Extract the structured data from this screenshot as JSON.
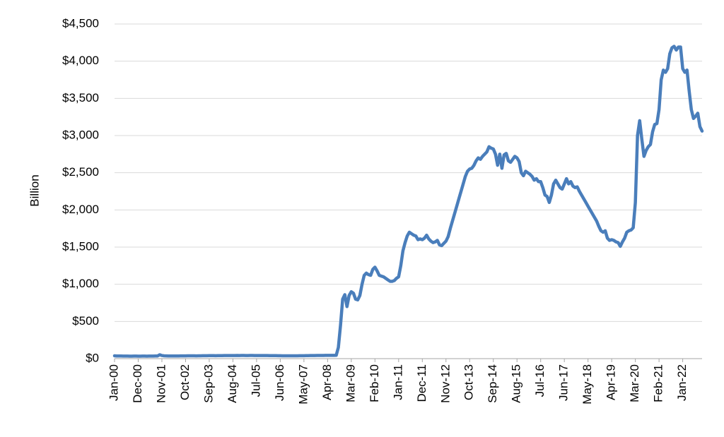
{
  "chart_data": {
    "type": "line",
    "y_label": "Billion",
    "color": "#4a7ebb",
    "grid": true,
    "ylim": [
      0,
      4500
    ],
    "yticks": [
      {
        "value": 0,
        "label": "$0"
      },
      {
        "value": 500,
        "label": "$500"
      },
      {
        "value": 1000,
        "label": "$1,000"
      },
      {
        "value": 1500,
        "label": "$1,500"
      },
      {
        "value": 2000,
        "label": "$2,000"
      },
      {
        "value": 2500,
        "label": "$2,500"
      },
      {
        "value": 3000,
        "label": "$3,000"
      },
      {
        "value": 3500,
        "label": "$3,500"
      },
      {
        "value": 4000,
        "label": "$4,000"
      },
      {
        "value": 4500,
        "label": "$4,500"
      }
    ],
    "categories": [
      "Jan-00",
      null,
      null,
      null,
      null,
      null,
      null,
      null,
      null,
      null,
      null,
      "Dec-00",
      null,
      null,
      null,
      null,
      null,
      null,
      null,
      null,
      null,
      null,
      "Nov-01",
      null,
      null,
      null,
      null,
      null,
      null,
      null,
      null,
      null,
      null,
      "Oct-02",
      null,
      null,
      null,
      null,
      null,
      null,
      null,
      null,
      null,
      null,
      "Sep-03",
      null,
      null,
      null,
      null,
      null,
      null,
      null,
      null,
      null,
      null,
      "Aug-04",
      null,
      null,
      null,
      null,
      null,
      null,
      null,
      null,
      null,
      null,
      "Jul-05",
      null,
      null,
      null,
      null,
      null,
      null,
      null,
      null,
      null,
      null,
      "Jun-06",
      null,
      null,
      null,
      null,
      null,
      null,
      null,
      null,
      null,
      null,
      "May-07",
      null,
      null,
      null,
      null,
      null,
      null,
      null,
      null,
      null,
      null,
      "Apr-08",
      null,
      null,
      null,
      null,
      null,
      null,
      null,
      null,
      null,
      null,
      "Mar-09",
      null,
      null,
      null,
      null,
      null,
      null,
      null,
      null,
      null,
      null,
      "Feb-10",
      null,
      null,
      null,
      null,
      null,
      null,
      null,
      null,
      null,
      null,
      "Jan-11",
      null,
      null,
      null,
      null,
      null,
      null,
      null,
      null,
      null,
      null,
      "Dec-11",
      null,
      null,
      null,
      null,
      null,
      null,
      null,
      null,
      null,
      null,
      "Nov-12",
      null,
      null,
      null,
      null,
      null,
      null,
      null,
      null,
      null,
      null,
      "Oct-13",
      null,
      null,
      null,
      null,
      null,
      null,
      null,
      null,
      null,
      null,
      "Sep-14",
      null,
      null,
      null,
      null,
      null,
      null,
      null,
      null,
      null,
      null,
      "Aug-15",
      null,
      null,
      null,
      null,
      null,
      null,
      null,
      null,
      null,
      null,
      "Jul-16",
      null,
      null,
      null,
      null,
      null,
      null,
      null,
      null,
      null,
      null,
      "Jun-17",
      null,
      null,
      null,
      null,
      null,
      null,
      null,
      null,
      null,
      null,
      "May-18",
      null,
      null,
      null,
      null,
      null,
      null,
      null,
      null,
      null,
      null,
      "Apr-19",
      null,
      null,
      null,
      null,
      null,
      null,
      null,
      null,
      null,
      null,
      "Mar-20",
      null,
      null,
      null,
      null,
      null,
      null,
      null,
      null,
      null,
      null,
      "Feb-21",
      null,
      null,
      null,
      null,
      null,
      null,
      null,
      null,
      null,
      null,
      "Jan-22",
      null,
      null,
      null,
      null,
      null,
      null,
      null,
      null,
      null
    ],
    "values": [
      38,
      36,
      35,
      35,
      34,
      34,
      34,
      33,
      33,
      34,
      34,
      33,
      33,
      34,
      34,
      33,
      34,
      34,
      34,
      35,
      36,
      52,
      42,
      38,
      37,
      36,
      36,
      36,
      35,
      36,
      36,
      37,
      37,
      37,
      38,
      38,
      38,
      38,
      37,
      38,
      38,
      39,
      39,
      39,
      40,
      40,
      40,
      39,
      40,
      40,
      40,
      41,
      41,
      42,
      42,
      41,
      42,
      43,
      42,
      43,
      43,
      42,
      42,
      43,
      43,
      42,
      42,
      42,
      42,
      41,
      41,
      41,
      40,
      40,
      40,
      40,
      39,
      39,
      38,
      38,
      38,
      38,
      38,
      38,
      38,
      38,
      39,
      39,
      39,
      40,
      40,
      41,
      42,
      42,
      43,
      43,
      43,
      43,
      44,
      44,
      44,
      44,
      44,
      45,
      150,
      450,
      800,
      860,
      700,
      850,
      900,
      880,
      800,
      790,
      850,
      1000,
      1120,
      1150,
      1130,
      1120,
      1200,
      1230,
      1180,
      1120,
      1110,
      1100,
      1080,
      1060,
      1040,
      1040,
      1050,
      1080,
      1100,
      1250,
      1450,
      1560,
      1650,
      1700,
      1680,
      1660,
      1650,
      1600,
      1610,
      1600,
      1620,
      1660,
      1610,
      1580,
      1560,
      1570,
      1590,
      1530,
      1520,
      1550,
      1580,
      1640,
      1750,
      1850,
      1950,
      2050,
      2150,
      2250,
      2350,
      2450,
      2520,
      2550,
      2560,
      2600,
      2660,
      2700,
      2680,
      2720,
      2750,
      2780,
      2850,
      2830,
      2820,
      2750,
      2600,
      2750,
      2560,
      2740,
      2760,
      2660,
      2640,
      2680,
      2720,
      2700,
      2650,
      2500,
      2460,
      2520,
      2500,
      2480,
      2450,
      2400,
      2420,
      2380,
      2380,
      2300,
      2200,
      2180,
      2100,
      2200,
      2350,
      2400,
      2350,
      2300,
      2280,
      2350,
      2420,
      2350,
      2380,
      2320,
      2300,
      2310,
      2250,
      2200,
      2150,
      2100,
      2050,
      2000,
      1950,
      1900,
      1850,
      1780,
      1720,
      1700,
      1720,
      1620,
      1590,
      1600,
      1590,
      1570,
      1560,
      1510,
      1570,
      1620,
      1700,
      1720,
      1730,
      1760,
      2100,
      3000,
      3200,
      2950,
      2720,
      2800,
      2850,
      2880,
      3050,
      3150,
      3160,
      3350,
      3750,
      3880,
      3850,
      3900,
      4100,
      4180,
      4200,
      4150,
      4190,
      4190,
      3900,
      3850,
      3880,
      3600,
      3350,
      3230,
      3260,
      3300,
      3120,
      3060
    ]
  }
}
